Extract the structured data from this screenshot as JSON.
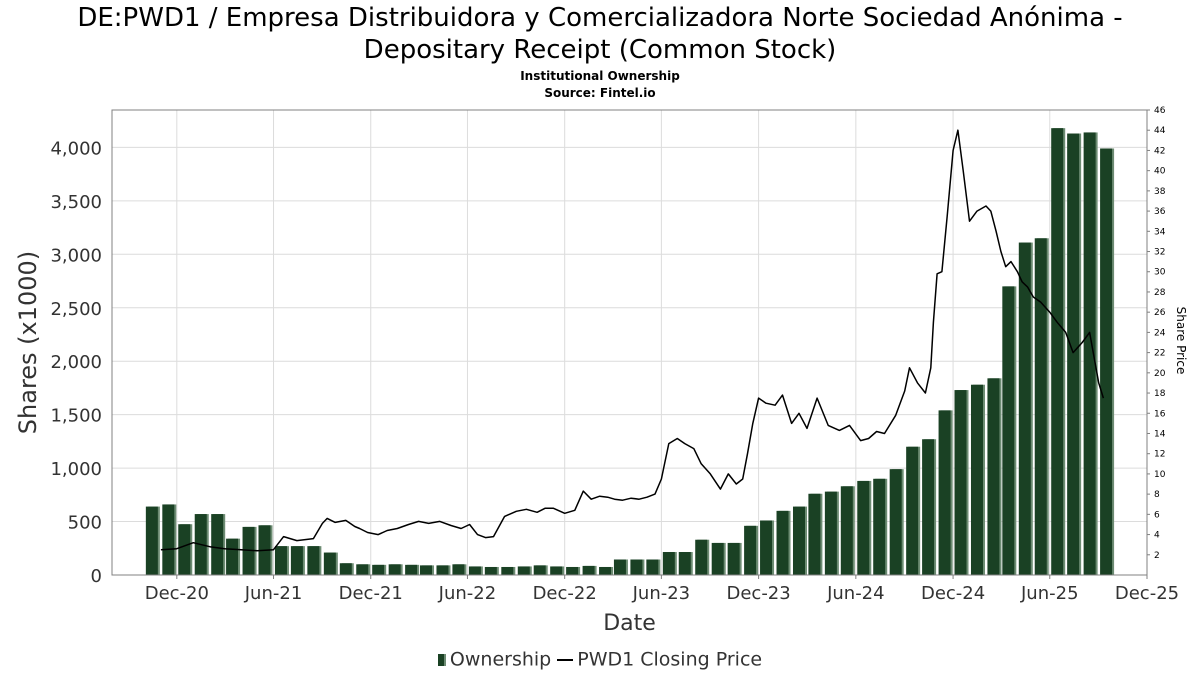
{
  "chart_data": {
    "type": "bar",
    "title_line1": "DE:PWD1 / Empresa Distribuidora y Comercializadora Norte Sociedad Anónima -",
    "title_line2": "Depositary Receipt (Common Stock)",
    "subtitle1": "Institutional Ownership",
    "subtitle2": "Source: Fintel.io",
    "xlabel": "Date",
    "ylabel": "Shares (x1000)",
    "y2label": "Share Price",
    "x_range": [
      "2020-08-01",
      "2025-12-01"
    ],
    "ylim": [
      0,
      4350
    ],
    "y2lim": [
      0,
      46
    ],
    "x_ticks": [
      {
        "label": "Dec-20",
        "date": "2020-12-01"
      },
      {
        "label": "Jun-21",
        "date": "2021-06-01"
      },
      {
        "label": "Dec-21",
        "date": "2021-12-01"
      },
      {
        "label": "Jun-22",
        "date": "2022-06-01"
      },
      {
        "label": "Dec-22",
        "date": "2022-12-01"
      },
      {
        "label": "Jun-23",
        "date": "2023-06-01"
      },
      {
        "label": "Dec-23",
        "date": "2023-12-01"
      },
      {
        "label": "Jun-24",
        "date": "2024-06-01"
      },
      {
        "label": "Dec-24",
        "date": "2024-12-01"
      },
      {
        "label": "Jun-25",
        "date": "2025-06-01"
      },
      {
        "label": "Dec-25",
        "date": "2025-12-01"
      }
    ],
    "y_ticks": [
      {
        "label": "0",
        "value": 0
      },
      {
        "label": "500",
        "value": 500
      },
      {
        "label": "1,000",
        "value": 1000
      },
      {
        "label": "1,500",
        "value": 1500
      },
      {
        "label": "2,000",
        "value": 2000
      },
      {
        "label": "2,500",
        "value": 2500
      },
      {
        "label": "3,000",
        "value": 3000
      },
      {
        "label": "3,500",
        "value": 3500
      },
      {
        "label": "4,000",
        "value": 4000
      }
    ],
    "y2_ticks": [
      2,
      4,
      6,
      8,
      10,
      12,
      14,
      16,
      18,
      20,
      22,
      24,
      26,
      28,
      30,
      32,
      34,
      36,
      38,
      40,
      42,
      44,
      46
    ],
    "grid": true,
    "legend_position": "bottom",
    "colors": {
      "bar": "#1a4124",
      "bar_shadow": "#6d8c73",
      "line": "#000000",
      "grid": "#dcdcdc",
      "frame": "#808080"
    },
    "series": [
      {
        "name": "Ownership",
        "type": "bar",
        "x": [
          "2020-10-15",
          "2020-11-15",
          "2020-12-15",
          "2021-01-15",
          "2021-02-15",
          "2021-03-15",
          "2021-04-15",
          "2021-05-15",
          "2021-06-15",
          "2021-07-15",
          "2021-08-15",
          "2021-09-15",
          "2021-10-15",
          "2021-11-15",
          "2021-12-15",
          "2022-01-15",
          "2022-02-15",
          "2022-03-15",
          "2022-04-15",
          "2022-05-15",
          "2022-06-15",
          "2022-07-15",
          "2022-08-15",
          "2022-09-15",
          "2022-10-15",
          "2022-11-15",
          "2022-12-15",
          "2023-01-15",
          "2023-02-15",
          "2023-03-15",
          "2023-04-15",
          "2023-05-15",
          "2023-06-15",
          "2023-07-15",
          "2023-08-15",
          "2023-09-15",
          "2023-10-15",
          "2023-11-15",
          "2023-12-15",
          "2024-01-15",
          "2024-02-15",
          "2024-03-15",
          "2024-04-15",
          "2024-05-15",
          "2024-06-15",
          "2024-07-15",
          "2024-08-15",
          "2024-09-15",
          "2024-10-15",
          "2024-11-15",
          "2024-12-15",
          "2025-01-15",
          "2025-02-15",
          "2025-03-15",
          "2025-04-15",
          "2025-05-15",
          "2025-06-15",
          "2025-07-15",
          "2025-08-15",
          "2025-09-15"
        ],
        "values": [
          640,
          660,
          475,
          570,
          570,
          340,
          450,
          465,
          270,
          270,
          270,
          210,
          110,
          100,
          95,
          100,
          95,
          90,
          90,
          100,
          80,
          75,
          75,
          80,
          90,
          80,
          75,
          85,
          75,
          145,
          145,
          145,
          215,
          215,
          330,
          300,
          300,
          460,
          510,
          600,
          640,
          760,
          780,
          830,
          880,
          900,
          990,
          1200,
          1270,
          1540,
          1730,
          1780,
          1840,
          2700,
          3110,
          3150,
          4180,
          4130,
          4140,
          3990
        ]
      },
      {
        "name": "PWD1 Closing Price",
        "type": "line",
        "x": [
          "2020-11-01",
          "2020-12-01",
          "2021-01-01",
          "2021-02-01",
          "2021-03-01",
          "2021-04-01",
          "2021-05-01",
          "2021-06-01",
          "2021-06-20",
          "2021-07-15",
          "2021-08-15",
          "2021-09-01",
          "2021-09-10",
          "2021-09-25",
          "2021-10-15",
          "2021-11-01",
          "2021-11-10",
          "2021-11-25",
          "2021-12-15",
          "2022-01-01",
          "2022-01-20",
          "2022-02-10",
          "2022-03-01",
          "2022-03-20",
          "2022-04-10",
          "2022-05-01",
          "2022-05-20",
          "2022-06-05",
          "2022-06-20",
          "2022-07-05",
          "2022-07-20",
          "2022-08-10",
          "2022-09-01",
          "2022-09-20",
          "2022-10-10",
          "2022-10-25",
          "2022-11-10",
          "2022-12-01",
          "2022-12-20",
          "2023-01-05",
          "2023-01-20",
          "2023-02-05",
          "2023-02-20",
          "2023-03-05",
          "2023-03-20",
          "2023-04-05",
          "2023-04-20",
          "2023-05-05",
          "2023-05-20",
          "2023-06-01",
          "2023-06-05",
          "2023-06-15",
          "2023-07-01",
          "2023-07-15",
          "2023-08-01",
          "2023-08-15",
          "2023-09-01",
          "2023-09-20",
          "2023-10-05",
          "2023-10-20",
          "2023-11-01",
          "2023-11-10",
          "2023-11-20",
          "2023-12-01",
          "2023-12-15",
          "2024-01-01",
          "2024-01-15",
          "2024-02-01",
          "2024-02-15",
          "2024-03-01",
          "2024-03-20",
          "2024-04-10",
          "2024-05-01",
          "2024-05-20",
          "2024-06-10",
          "2024-06-25",
          "2024-07-10",
          "2024-07-25",
          "2024-08-15",
          "2024-09-01",
          "2024-09-10",
          "2024-09-25",
          "2024-10-10",
          "2024-10-20",
          "2024-10-25",
          "2024-11-01",
          "2024-11-10",
          "2024-11-20",
          "2024-12-01",
          "2024-12-10",
          "2024-12-20",
          "2025-01-01",
          "2025-01-15",
          "2025-02-01",
          "2025-02-10",
          "2025-02-20",
          "2025-03-01",
          "2025-03-10",
          "2025-03-20",
          "2025-04-01",
          "2025-04-10",
          "2025-04-20",
          "2025-05-01",
          "2025-05-15",
          "2025-06-01",
          "2025-06-15",
          "2025-07-01",
          "2025-07-15",
          "2025-08-01",
          "2025-08-15",
          "2025-09-01",
          "2025-09-10"
        ],
        "values": [
          2.5,
          2.6,
          3.2,
          2.8,
          2.6,
          2.5,
          2.4,
          2.5,
          3.8,
          3.4,
          3.6,
          5.1,
          5.6,
          5.2,
          5.4,
          4.8,
          4.6,
          4.2,
          4.0,
          4.4,
          4.6,
          5.0,
          5.3,
          5.1,
          5.3,
          4.9,
          4.6,
          5.0,
          4.0,
          3.7,
          3.8,
          5.8,
          6.3,
          6.5,
          6.2,
          6.6,
          6.6,
          6.1,
          6.4,
          8.3,
          7.5,
          7.8,
          7.7,
          7.5,
          7.4,
          7.6,
          7.5,
          7.7,
          8.0,
          9.5,
          10.5,
          13.0,
          13.5,
          13.0,
          12.5,
          11.0,
          10.0,
          8.5,
          10.0,
          9.0,
          9.5,
          12.0,
          15.0,
          17.5,
          17.0,
          16.8,
          17.8,
          15.0,
          16.0,
          14.5,
          17.5,
          14.8,
          14.3,
          14.8,
          13.3,
          13.5,
          14.2,
          14.0,
          15.8,
          18.2,
          20.5,
          19.0,
          18.0,
          20.5,
          25.0,
          29.8,
          30.0,
          35.5,
          42.0,
          44.0,
          40.0,
          35.0,
          36.0,
          36.5,
          36.0,
          34.0,
          32.0,
          30.5,
          31.0,
          30.0,
          29.0,
          28.5,
          27.5,
          27.0,
          26.0,
          25.0,
          24.0,
          22.0,
          23.0,
          24.0,
          19.0,
          17.5
        ]
      }
    ]
  },
  "legend": {
    "ownership_label": "Ownership",
    "price_label": "PWD1 Closing Price"
  }
}
